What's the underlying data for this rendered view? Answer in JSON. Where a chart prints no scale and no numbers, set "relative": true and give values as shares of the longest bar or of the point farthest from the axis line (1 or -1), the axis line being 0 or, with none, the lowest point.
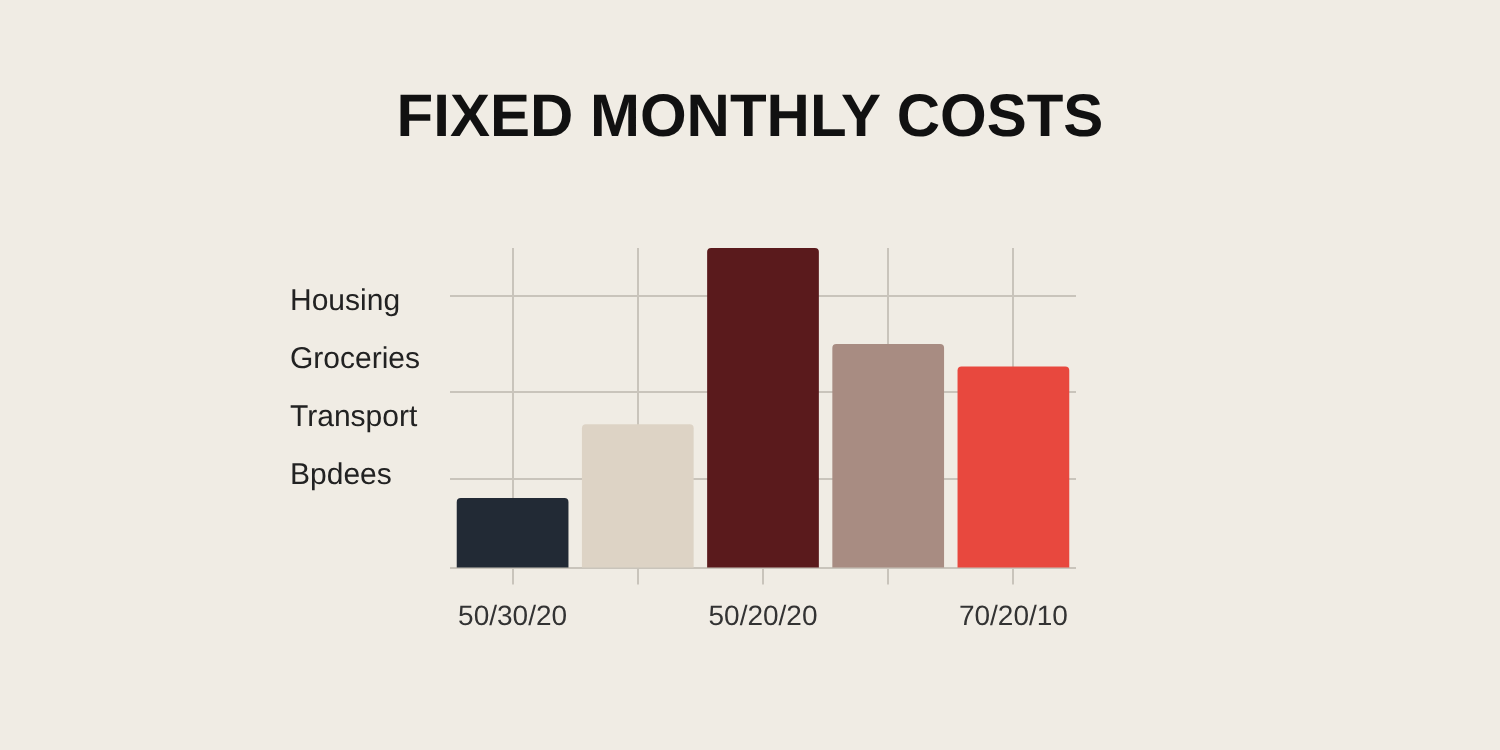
{
  "chart_data": {
    "type": "bar",
    "title": "FIXED MONTHLY COSTS",
    "categories": [
      "50/30/20",
      null,
      "50/20/20",
      null,
      "70/20/10"
    ],
    "values": [
      0.22,
      0.45,
      1,
      0.7,
      0.63
    ],
    "colors": [
      "#222a35",
      "#ddd3c5",
      "#5a1a1c",
      "#a88c82",
      "#e8483e"
    ],
    "relative": true,
    "grid": true,
    "legend": false,
    "annotations": [
      "Housing",
      "Groceries",
      "Transport",
      "Bpdees"
    ]
  }
}
